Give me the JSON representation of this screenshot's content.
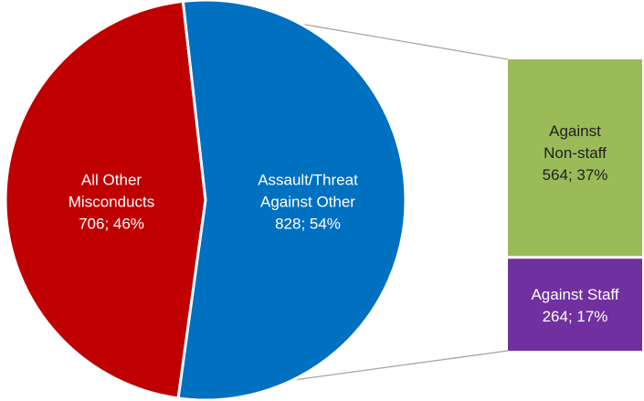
{
  "chart_data": {
    "type": "pie",
    "pie": {
      "slices": [
        {
          "label_lines": [
            "All Other",
            "Misconducts",
            "706; 46%"
          ],
          "value": 706,
          "percent": 46,
          "color": "#c00000"
        },
        {
          "label_lines": [
            "Assault/Threat",
            "Against Other",
            "828; 54%"
          ],
          "value": 828,
          "percent": 54,
          "color": "#0070c0"
        }
      ]
    },
    "breakdown": {
      "type": "stacked-bar",
      "of_slice": "Assault/Threat Against Other",
      "segments": [
        {
          "label_lines": [
            "Against",
            "Non-staff",
            "564; 37%"
          ],
          "value": 564,
          "percent": 37,
          "color": "#9bbb59"
        },
        {
          "label_lines": [
            "Against Staff",
            "264; 17%"
          ],
          "value": 264,
          "percent": 17,
          "color": "#7030a0"
        }
      ]
    },
    "legend": "none",
    "connector_color": "#a6a6a6"
  }
}
